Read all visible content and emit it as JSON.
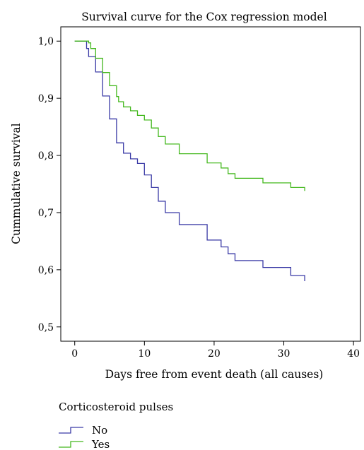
{
  "chart_data": {
    "type": "line",
    "title": "Survival curve for the Cox regression model",
    "xlabel": "Days free from event death (all causes)",
    "ylabel": "Cummulative survival",
    "xlim": [
      -2,
      41
    ],
    "ylim": [
      0.475,
      1.025
    ],
    "x_ticks": [
      0,
      10,
      20,
      30,
      40
    ],
    "y_ticks": [
      0.5,
      0.6,
      0.7,
      0.8,
      0.9,
      1.0
    ],
    "x_tick_labels": [
      "0",
      "10",
      "20",
      "30",
      "40"
    ],
    "y_tick_labels": [
      "0,5",
      "0,6",
      "0,7",
      "0,8",
      "0,9",
      "1,0"
    ],
    "step": true,
    "grid": false,
    "legend_title": "Corticosteroid pulses",
    "legend_position": "bottom-left",
    "series": [
      {
        "name": "No",
        "color": "#3a3aa6",
        "x": [
          0,
          1.7,
          2,
          3,
          4,
          5,
          6,
          7,
          8,
          9,
          10,
          11,
          12,
          13,
          15,
          19,
          21,
          22,
          23,
          27,
          31,
          33,
          33
        ],
        "y": [
          1.0,
          0.987,
          0.973,
          0.946,
          0.904,
          0.864,
          0.822,
          0.804,
          0.794,
          0.786,
          0.766,
          0.744,
          0.72,
          0.7,
          0.679,
          0.652,
          0.64,
          0.628,
          0.616,
          0.604,
          0.59,
          0.58,
          0.58
        ]
      },
      {
        "name": "Yes",
        "color": "#44b81e",
        "x": [
          0,
          2,
          2.3,
          3,
          4,
          5,
          6,
          6.3,
          7,
          8,
          9,
          10,
          11,
          12,
          13,
          15,
          19,
          21,
          22,
          23,
          27,
          31,
          33,
          33
        ],
        "y": [
          1.0,
          0.997,
          0.987,
          0.97,
          0.945,
          0.922,
          0.903,
          0.894,
          0.885,
          0.878,
          0.87,
          0.862,
          0.848,
          0.833,
          0.82,
          0.803,
          0.787,
          0.778,
          0.768,
          0.76,
          0.752,
          0.744,
          0.738,
          0.738
        ]
      }
    ]
  }
}
